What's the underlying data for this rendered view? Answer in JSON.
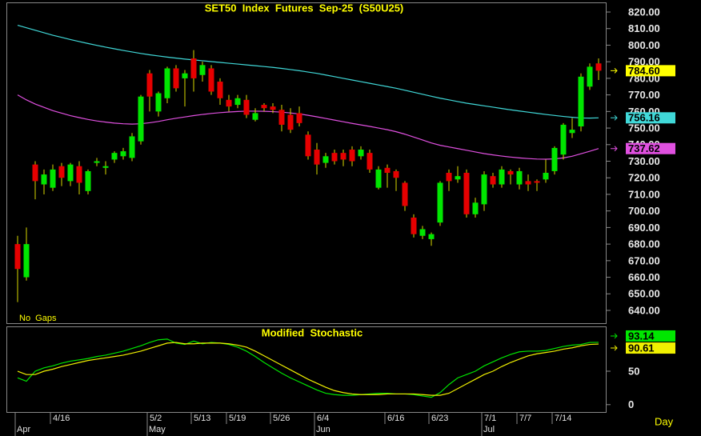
{
  "chart_data": [
    {
      "type": "candlestick",
      "title": "SET50  Index  Futures  Sep-25  (S50U25)",
      "note": "No  Gaps",
      "x_label": "Day",
      "categories": [
        null,
        null,
        null,
        null,
        "4/16",
        null,
        null,
        null,
        null,
        null,
        null,
        null,
        null,
        null,
        null,
        "5/2",
        null,
        null,
        null,
        null,
        "5/13",
        null,
        null,
        null,
        "5/19",
        null,
        null,
        null,
        null,
        "5/26",
        null,
        null,
        null,
        null,
        "6/4",
        null,
        null,
        null,
        null,
        null,
        null,
        null,
        "6/16",
        null,
        null,
        null,
        null,
        "6/23",
        null,
        null,
        null,
        null,
        null,
        "7/1",
        null,
        null,
        null,
        "7/7",
        null,
        null,
        null,
        "7/14",
        null,
        null,
        null,
        null,
        null
      ],
      "months": [
        "Apr",
        null,
        null,
        null,
        null,
        null,
        null,
        null,
        null,
        null,
        null,
        null,
        null,
        null,
        null,
        "May",
        null,
        null,
        null,
        null,
        null,
        null,
        null,
        null,
        null,
        null,
        null,
        null,
        null,
        null,
        null,
        null,
        null,
        null,
        "Jun",
        null,
        null,
        null,
        null,
        null,
        null,
        null,
        null,
        null,
        null,
        null,
        null,
        null,
        null,
        null,
        null,
        null,
        null,
        "Jul",
        null,
        null,
        null,
        null,
        null,
        null,
        null,
        null,
        null,
        null,
        null,
        null,
        null
      ],
      "open": [
        680,
        660,
        728,
        716,
        714,
        727,
        718,
        727,
        712,
        729,
        726,
        731,
        733,
        732,
        742,
        783,
        760,
        768,
        786,
        780,
        792,
        782,
        786,
        778,
        767,
        764,
        767,
        755,
        764,
        763,
        761,
        758,
        759,
        746,
        737,
        729,
        735,
        735,
        737,
        733,
        735,
        714,
        726,
        724,
        717,
        696,
        685,
        683,
        693,
        723,
        719,
        723,
        698,
        704,
        721,
        716,
        724,
        716,
        718,
        718,
        719,
        724,
        734,
        747,
        751,
        775,
        789
      ],
      "high": [
        685,
        690,
        730,
        725,
        728,
        729,
        729,
        730,
        725,
        732,
        730,
        736,
        738,
        747,
        770,
        785,
        772,
        787,
        788,
        785,
        797,
        790,
        788,
        780,
        770,
        770,
        770,
        762,
        765,
        765,
        764,
        762,
        763,
        748,
        741,
        735,
        737,
        737,
        739,
        739,
        737,
        727,
        728,
        725,
        718,
        698,
        691,
        687,
        718,
        725,
        727,
        725,
        708,
        724,
        723,
        727,
        725,
        726,
        722,
        719,
        731,
        739,
        753,
        756,
        783,
        789,
        792
      ],
      "low": [
        645,
        658,
        707,
        710,
        712,
        715,
        715,
        710,
        710,
        727,
        722,
        729,
        731,
        730,
        740,
        760,
        757,
        765,
        772,
        763,
        772,
        778,
        770,
        764,
        760,
        762,
        756,
        754,
        760,
        759,
        748,
        747,
        751,
        731,
        722,
        726,
        728,
        727,
        727,
        731,
        723,
        713,
        714,
        712,
        700,
        684,
        683,
        679,
        691,
        712,
        717,
        696,
        696,
        700,
        714,
        714,
        716,
        713,
        712,
        712,
        717,
        722,
        731,
        744,
        748,
        773,
        779
      ],
      "close": [
        665,
        680,
        718,
        722,
        725,
        720,
        728,
        717,
        724,
        730,
        727,
        735,
        736,
        745,
        769,
        769,
        771,
        786,
        774,
        783,
        780,
        788,
        772,
        768,
        763,
        768,
        758,
        759,
        762,
        761,
        752,
        749,
        753,
        733,
        728,
        733,
        730,
        731,
        730,
        737,
        725,
        725,
        723,
        720,
        703,
        686,
        689,
        686,
        717,
        718,
        721,
        698,
        705,
        722,
        716,
        725,
        722,
        724,
        716,
        717,
        723,
        738,
        752,
        749,
        781,
        787,
        784.6
      ],
      "last_label": "784.60",
      "up_color": "#00e600",
      "down_color": "#e60000",
      "wick_color": "#d8d800",
      "overlays": [
        {
          "color": "#40d8d8",
          "values": [
            812,
            810.5,
            809,
            807.5,
            806,
            804.7,
            803.4,
            802.2,
            801,
            799.9,
            798.8,
            797.8,
            796.8,
            795.9,
            795,
            794.2,
            793.5,
            792.8,
            792.2,
            791.6,
            791.1,
            790.6,
            790.1,
            789.6,
            789.1,
            788.6,
            788.1,
            787.6,
            787.1,
            786.6,
            786,
            785.3,
            784.6,
            783.8,
            783,
            782,
            781,
            780,
            779,
            778,
            777,
            776,
            775,
            774,
            772.8,
            771.6,
            770.4,
            769.2,
            768,
            767,
            766,
            765,
            764.2,
            763.4,
            762.6,
            761.8,
            761,
            760.3,
            759.6,
            758.9,
            758.2,
            757.6,
            757,
            756.5,
            756.1,
            756,
            756.16
          ]
        },
        {
          "color": "#e050e0",
          "values": [
            770,
            767,
            764.5,
            762.5,
            760.5,
            759,
            757.5,
            756.3,
            755.2,
            754.3,
            753.6,
            753,
            752.6,
            752.4,
            752.6,
            753.2,
            754,
            755,
            755.9,
            756.7,
            757.5,
            758.2,
            758.8,
            759.3,
            759.7,
            760,
            760.2,
            760.2,
            760.1,
            759.9,
            759.6,
            759.1,
            758.5,
            757.7,
            756.8,
            755.8,
            754.8,
            753.8,
            752.8,
            751.9,
            751,
            750,
            749,
            747.8,
            746.3,
            744.6,
            742.8,
            741,
            739.6,
            738.6,
            737.6,
            736.6,
            735.6,
            734.6,
            733.8,
            733.1,
            732.5,
            732,
            731.6,
            731.3,
            731.2,
            731.4,
            732,
            733,
            734.5,
            736,
            737.62
          ]
        }
      ],
      "ylim": [
        631.8,
        825.8
      ],
      "yticks": [
        {
          "value": 820,
          "label": "820.00"
        },
        {
          "value": 810,
          "label": "810.00"
        },
        {
          "value": 800,
          "label": "800.00"
        },
        {
          "value": 790,
          "label": "790.00"
        },
        {
          "value": 780,
          "label": "780.00"
        },
        {
          "value": 770,
          "label": "770.00"
        },
        {
          "value": 760,
          "label": "760.00"
        },
        {
          "value": 750,
          "label": "750.00"
        },
        {
          "value": 740,
          "label": "740.00"
        },
        {
          "value": 730,
          "label": "730.00"
        },
        {
          "value": 720,
          "label": "720.00"
        },
        {
          "value": 710,
          "label": "710.00"
        },
        {
          "value": 700,
          "label": "700.00"
        },
        {
          "value": 690,
          "label": "690.00"
        },
        {
          "value": 680,
          "label": "680.00"
        },
        {
          "value": 670,
          "label": "670.00"
        },
        {
          "value": 660,
          "label": "660.00"
        },
        {
          "value": 650,
          "label": "650.00"
        },
        {
          "value": 640,
          "label": "640.00"
        }
      ],
      "grid": false
    },
    {
      "type": "line",
      "title": "Modified  Stochastic",
      "series": [
        {
          "color": "#00e600",
          "values": [
            40,
            35,
            50,
            55,
            58,
            62,
            65,
            67,
            69,
            72,
            74,
            77,
            80,
            84,
            88,
            93,
            97,
            98,
            92,
            90,
            95,
            91,
            93,
            92,
            90,
            86,
            80,
            72,
            63,
            55,
            47,
            40,
            34,
            28,
            22,
            17,
            15,
            14,
            14,
            15,
            16,
            17,
            17,
            16,
            16,
            15,
            13,
            11,
            18,
            30,
            40,
            45,
            50,
            58,
            64,
            70,
            75,
            79,
            80,
            80,
            81,
            84,
            87,
            89,
            90,
            93,
            93.14
          ]
        },
        {
          "color": "#f0f000",
          "values": [
            50,
            45,
            45,
            50,
            53,
            57,
            60,
            63,
            66,
            68,
            70,
            72,
            74,
            77,
            80,
            84,
            88,
            92,
            93,
            91,
            91,
            92,
            92,
            92,
            91,
            89,
            86,
            80,
            73,
            66,
            59,
            52,
            45,
            38,
            32,
            26,
            21,
            18,
            16,
            15,
            15,
            15,
            16,
            16,
            16,
            16,
            15,
            14,
            14,
            17,
            24,
            31,
            38,
            45,
            50,
            57,
            63,
            68,
            73,
            76,
            78,
            80,
            83,
            85,
            88,
            90,
            90.61
          ]
        }
      ],
      "ylim": [
        -11,
        117
      ],
      "yticks": [
        0,
        50
      ],
      "grid": false
    }
  ]
}
